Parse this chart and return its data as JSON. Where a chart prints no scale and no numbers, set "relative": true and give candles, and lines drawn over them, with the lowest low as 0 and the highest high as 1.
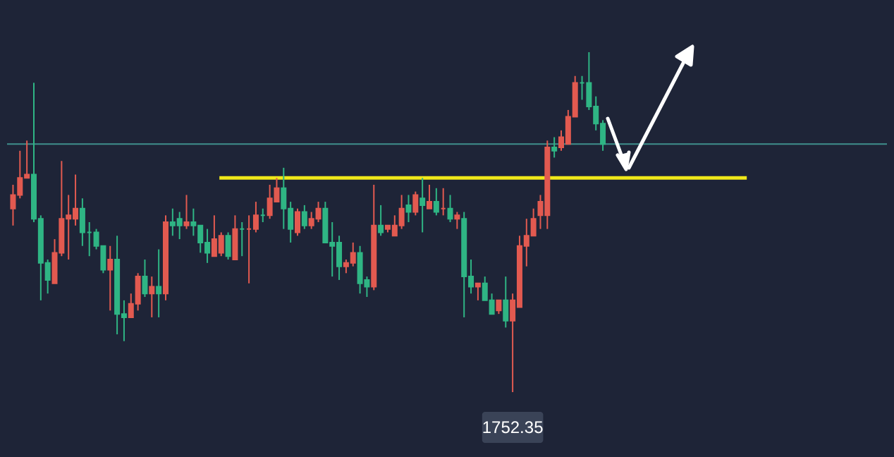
{
  "chart_data": {
    "type": "candlestick",
    "relative": true,
    "categories": [
      null,
      null,
      null,
      null,
      null,
      null,
      null,
      null,
      null,
      null,
      null,
      null,
      null,
      null,
      null,
      null,
      null,
      null,
      null,
      null,
      null,
      null,
      null,
      null,
      null,
      null,
      null,
      null,
      null,
      null,
      null,
      null,
      null,
      null,
      null,
      null,
      null,
      null,
      null,
      null,
      null,
      null,
      null,
      null,
      null,
      null,
      null,
      null,
      null,
      null,
      null,
      null,
      null,
      null,
      null,
      null,
      null,
      null,
      null,
      null,
      null,
      null,
      null,
      null,
      null,
      null,
      null,
      null,
      null,
      null,
      null,
      null,
      null,
      null,
      null,
      null,
      null,
      null,
      null,
      null,
      null,
      null,
      null,
      null,
      null,
      null
    ],
    "ohlc": [
      [
        0.54,
        0.61,
        0.49,
        0.58
      ],
      [
        0.58,
        0.71,
        0.57,
        0.63
      ],
      [
        0.63,
        0.74,
        0.63,
        0.64
      ],
      [
        0.64,
        0.91,
        0.5,
        0.51
      ],
      [
        0.51,
        0.52,
        0.27,
        0.38
      ],
      [
        0.38,
        0.39,
        0.29,
        0.33
      ],
      [
        0.32,
        0.45,
        0.32,
        0.41
      ],
      [
        0.41,
        0.68,
        0.4,
        0.51
      ],
      [
        0.51,
        0.58,
        0.39,
        0.52
      ],
      [
        0.51,
        0.64,
        0.49,
        0.54
      ],
      [
        0.54,
        0.57,
        0.43,
        0.47
      ],
      [
        0.47,
        0.5,
        0.4,
        0.47
      ],
      [
        0.47,
        0.48,
        0.42,
        0.43
      ],
      [
        0.43,
        0.43,
        0.35,
        0.36
      ],
      [
        0.36,
        0.43,
        0.24,
        0.39
      ],
      [
        0.39,
        0.46,
        0.17,
        0.23
      ],
      [
        0.23,
        0.27,
        0.15,
        0.22
      ],
      [
        0.22,
        0.29,
        0.22,
        0.26
      ],
      [
        0.26,
        0.35,
        0.24,
        0.34
      ],
      [
        0.34,
        0.39,
        0.28,
        0.29
      ],
      [
        0.29,
        0.34,
        0.22,
        0.31
      ],
      [
        0.31,
        0.42,
        0.22,
        0.29
      ],
      [
        0.29,
        0.52,
        0.27,
        0.5
      ],
      [
        0.5,
        0.54,
        0.46,
        0.49
      ],
      [
        0.51,
        0.53,
        0.45,
        0.49
      ],
      [
        0.49,
        0.58,
        0.48,
        0.5
      ],
      [
        0.5,
        0.54,
        0.46,
        0.49
      ],
      [
        0.49,
        0.49,
        0.41,
        0.44
      ],
      [
        0.44,
        0.48,
        0.38,
        0.41
      ],
      [
        0.4,
        0.52,
        0.4,
        0.45
      ],
      [
        0.41,
        0.47,
        0.4,
        0.46
      ],
      [
        0.46,
        0.47,
        0.39,
        0.4
      ],
      [
        0.39,
        0.52,
        0.39,
        0.48
      ],
      [
        0.48,
        0.5,
        0.4,
        0.48
      ],
      [
        0.48,
        0.52,
        0.32,
        0.48
      ],
      [
        0.48,
        0.56,
        0.47,
        0.52
      ],
      [
        0.52,
        0.54,
        0.5,
        0.52
      ],
      [
        0.52,
        0.61,
        0.51,
        0.57
      ],
      [
        0.56,
        0.63,
        0.56,
        0.6
      ],
      [
        0.6,
        0.66,
        0.48,
        0.54
      ],
      [
        0.54,
        0.56,
        0.44,
        0.48
      ],
      [
        0.47,
        0.54,
        0.46,
        0.53
      ],
      [
        0.53,
        0.55,
        0.48,
        0.49
      ],
      [
        0.49,
        0.53,
        0.48,
        0.51
      ],
      [
        0.51,
        0.56,
        0.5,
        0.54
      ],
      [
        0.54,
        0.56,
        0.44,
        0.44
      ],
      [
        0.44,
        0.5,
        0.34,
        0.43
      ],
      [
        0.44,
        0.46,
        0.33,
        0.37
      ],
      [
        0.37,
        0.39,
        0.35,
        0.38
      ],
      [
        0.38,
        0.44,
        0.37,
        0.41
      ],
      [
        0.41,
        0.43,
        0.29,
        0.32
      ],
      [
        0.33,
        0.34,
        0.28,
        0.31
      ],
      [
        0.31,
        0.61,
        0.3,
        0.49
      ],
      [
        0.49,
        0.55,
        0.46,
        0.47
      ],
      [
        0.48,
        0.49,
        0.47,
        0.49
      ],
      [
        0.46,
        0.52,
        0.46,
        0.49
      ],
      [
        0.49,
        0.58,
        0.48,
        0.54
      ],
      [
        0.55,
        0.58,
        0.5,
        0.53
      ],
      [
        0.53,
        0.59,
        0.52,
        0.58
      ],
      [
        0.57,
        0.63,
        0.47,
        0.55
      ],
      [
        0.54,
        0.61,
        0.54,
        0.56
      ],
      [
        0.56,
        0.6,
        0.52,
        0.53
      ],
      [
        0.54,
        0.6,
        0.52,
        0.54
      ],
      [
        0.54,
        0.58,
        0.5,
        0.51
      ],
      [
        0.51,
        0.53,
        0.48,
        0.52
      ],
      [
        0.51,
        0.53,
        0.22,
        0.34
      ],
      [
        0.34,
        0.39,
        0.29,
        0.31
      ],
      [
        0.31,
        0.32,
        0.27,
        0.32
      ],
      [
        0.32,
        0.34,
        0.27,
        0.27
      ],
      [
        0.27,
        0.29,
        0.23,
        0.23
      ],
      [
        0.24,
        0.27,
        0.23,
        0.27
      ],
      [
        0.27,
        0.34,
        0.19,
        0.21
      ],
      [
        0.21,
        0.29,
        0,
        0.27
      ],
      [
        0.25,
        0.46,
        0.25,
        0.43
      ],
      [
        0.43,
        0.51,
        0.37,
        0.46
      ],
      [
        0.46,
        0.54,
        0.46,
        0.51
      ],
      [
        0.52,
        0.58,
        0.48,
        0.56
      ],
      [
        0.52,
        0.74,
        0.48,
        0.72
      ],
      [
        0.72,
        0.75,
        0.69,
        0.71
      ],
      [
        0.72,
        0.77,
        0.71,
        0.75
      ],
      [
        0.73,
        0.83,
        0.73,
        0.81
      ],
      [
        0.81,
        0.93,
        0.81,
        0.91
      ],
      [
        0.91,
        0.93,
        0.86,
        0.91
      ],
      [
        0.91,
        1,
        0.83,
        0.84
      ],
      [
        0.84,
        0.87,
        0.77,
        0.79
      ],
      [
        0.79,
        0.8,
        0.71,
        0.73
      ]
    ],
    "colors": [
      "#e25a50",
      "#e25a50",
      "#e25a50",
      "#2fb584",
      "#2fb584",
      "#2fb584",
      "#e25a50",
      "#e25a50",
      "#e25a50",
      "#e25a50",
      "#2fb584",
      "#2fb584",
      "#2fb584",
      "#2fb584",
      "#e25a50",
      "#2fb584",
      "#2fb584",
      "#e25a50",
      "#e25a50",
      "#2fb584",
      "#e25a50",
      "#2fb584",
      "#e25a50",
      "#2fb584",
      "#2fb584",
      "#e25a50",
      "#2fb584",
      "#2fb584",
      "#2fb584",
      "#e25a50",
      "#e25a50",
      "#2fb584",
      "#e25a50",
      "#2fb584",
      "#e25a50",
      "#e25a50",
      "#2fb584",
      "#e25a50",
      "#e25a50",
      "#2fb584",
      "#2fb584",
      "#e25a50",
      "#2fb584",
      "#e25a50",
      "#e25a50",
      "#2fb584",
      "#2fb584",
      "#2fb584",
      "#e25a50",
      "#e25a50",
      "#2fb584",
      "#2fb584",
      "#e25a50",
      "#2fb584",
      "#e25a50",
      "#e25a50",
      "#e25a50",
      "#2fb584",
      "#e25a50",
      "#2fb584",
      "#e25a50",
      "#2fb584",
      "#e25a50",
      "#2fb584",
      "#e25a50",
      "#2fb584",
      "#2fb584",
      "#e25a50",
      "#2fb584",
      "#2fb584",
      "#e25a50",
      "#2fb584",
      "#e25a50",
      "#e25a50",
      "#e25a50",
      "#e25a50",
      "#e25a50",
      "#e25a50",
      "#2fb584",
      "#e25a50",
      "#e25a50",
      "#e25a50",
      "#2fb584",
      "#2fb584",
      "#2fb584",
      "#2fb584"
    ],
    "ref_lines": [
      {
        "axis": "y",
        "value": 0.73,
        "color": "#3f8f8c"
      },
      {
        "axis": "y",
        "value": 0.63,
        "color": "#f0e81a"
      }
    ],
    "annotations": [
      {
        "text": "1752.35",
        "y": 0
      }
    ]
  }
}
